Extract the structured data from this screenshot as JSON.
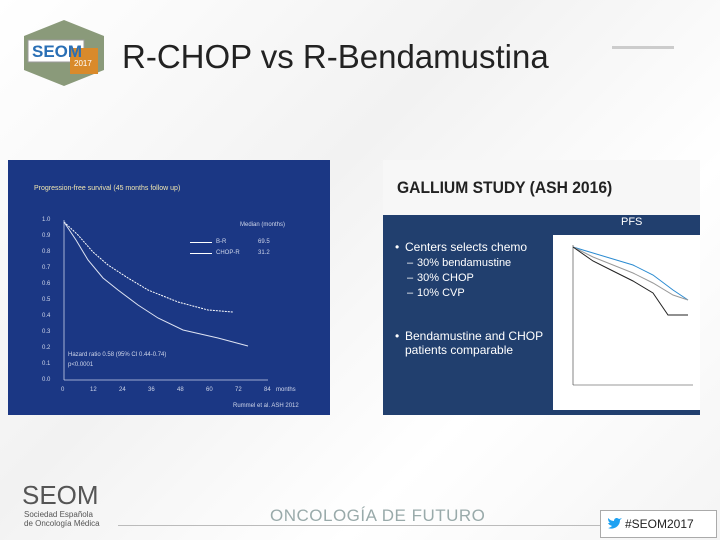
{
  "header": {
    "logo": "SEOM",
    "logo_year": "2017",
    "title": "R-CHOP vs R-Bendamustina"
  },
  "left_panel": {
    "title": "Progression-free survival (45 months follow up)",
    "legend_title": "Median (months)",
    "legend": [
      {
        "name": "B-R",
        "value": "69.5"
      },
      {
        "name": "CHOP-R",
        "value": "31.2"
      }
    ],
    "yticks": [
      "1.0",
      "0.9",
      "0.8",
      "0.7",
      "0.6",
      "0.5",
      "0.4",
      "0.3",
      "0.2",
      "0.1",
      "0.0"
    ],
    "xticks": [
      "0",
      "12",
      "24",
      "36",
      "48",
      "60",
      "72",
      "84"
    ],
    "x_unit": "months",
    "stats": [
      "Hazard ratio 0.58 (95% CI 0.44-0.74)",
      "p<0.0001"
    ],
    "footnote": "Rummel et al. ASH 2012"
  },
  "right_panel": {
    "title": "GALLIUM STUDY (ASH 2016)",
    "chart_title": "PFS",
    "bullets": [
      {
        "text": "Centers selects chemo",
        "sub": [
          "30% bendamustine",
          "30% CHOP",
          "10% CVP"
        ]
      },
      {
        "text": "Bendamustine and CHOP patients comparable",
        "sub": []
      }
    ]
  },
  "footer": {
    "logo": "SEOM",
    "society": [
      "Sociedad Española",
      "de Oncología Médica"
    ],
    "slogan": "ONCOLOGÍA DE FUTURO",
    "hashtag": "#SEOM2017"
  }
}
